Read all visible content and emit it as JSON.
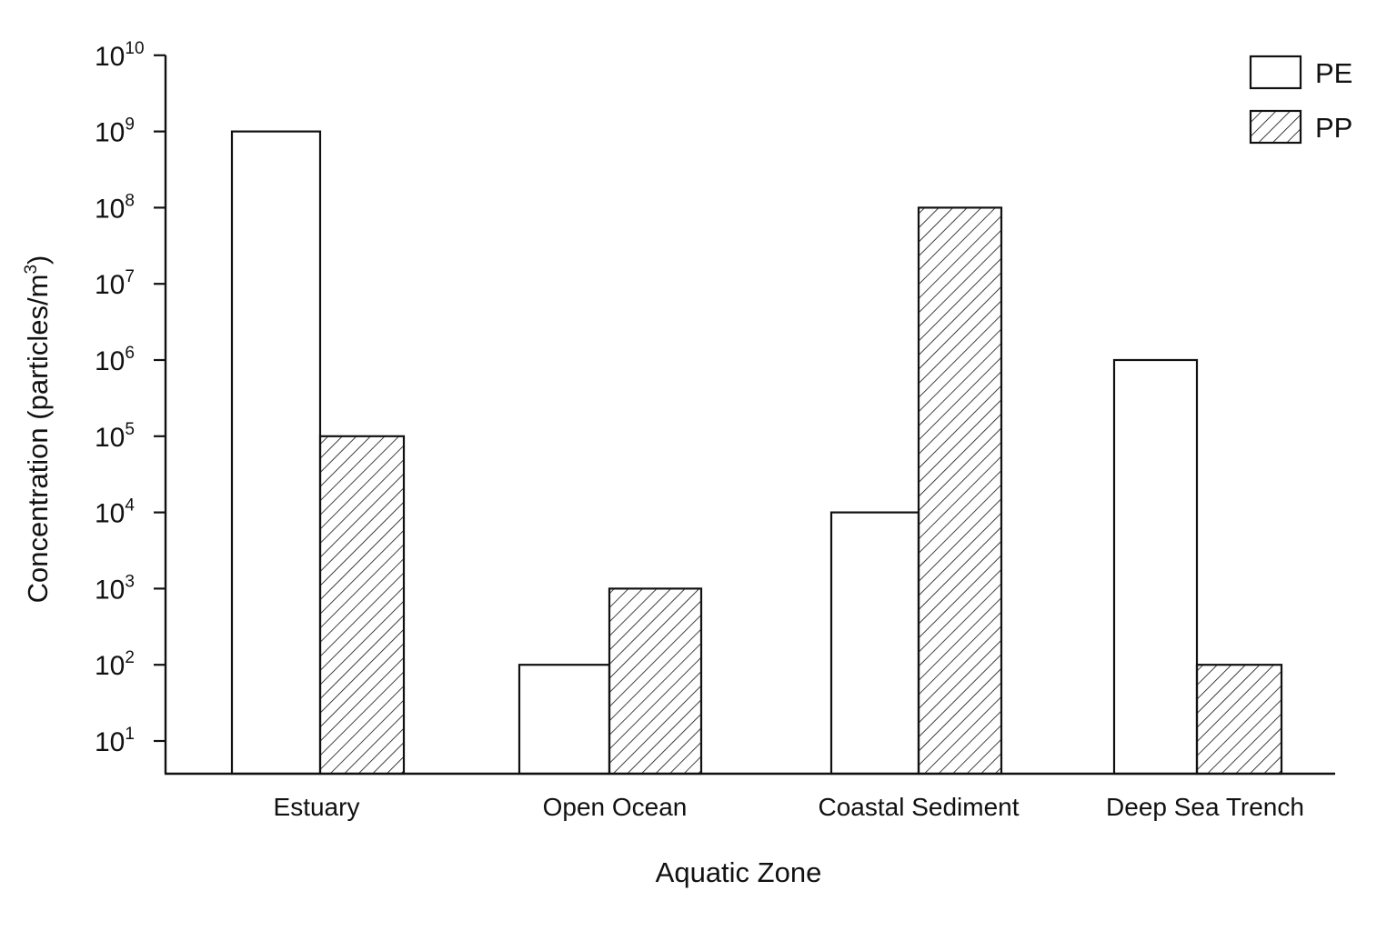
{
  "chart_data": {
    "type": "bar",
    "scale": "log",
    "categories": [
      "Estuary",
      "Open Ocean",
      "Coastal Sediment",
      "Deep Sea Trench"
    ],
    "series": [
      {
        "name": "PE",
        "fill": "none",
        "values": [
          1000000000,
          100,
          10000,
          1000000
        ]
      },
      {
        "name": "PP",
        "fill": "hatched",
        "values": [
          100000,
          1000,
          100000000,
          100
        ]
      }
    ],
    "xlabel": "Aquatic Zone",
    "ylabel_main": "Concentration (particles/m",
    "ylabel_sup": "3",
    "ylabel_end": ")",
    "ylim": [
      3,
      10000000000
    ],
    "yticks": [
      {
        "base": "10",
        "exp": "1",
        "value": 10
      },
      {
        "base": "10",
        "exp": "2",
        "value": 100
      },
      {
        "base": "10",
        "exp": "3",
        "value": 1000
      },
      {
        "base": "10",
        "exp": "4",
        "value": 10000
      },
      {
        "base": "10",
        "exp": "5",
        "value": 100000
      },
      {
        "base": "10",
        "exp": "6",
        "value": 1000000
      },
      {
        "base": "10",
        "exp": "7",
        "value": 10000000
      },
      {
        "base": "10",
        "exp": "8",
        "value": 100000000
      },
      {
        "base": "10",
        "exp": "9",
        "value": 1000000000
      },
      {
        "base": "10",
        "exp": "10",
        "value": 10000000000
      }
    ],
    "grid": false,
    "legend_position": "top-right",
    "colors": {
      "stroke": "#111111",
      "background": "#ffffff"
    }
  }
}
